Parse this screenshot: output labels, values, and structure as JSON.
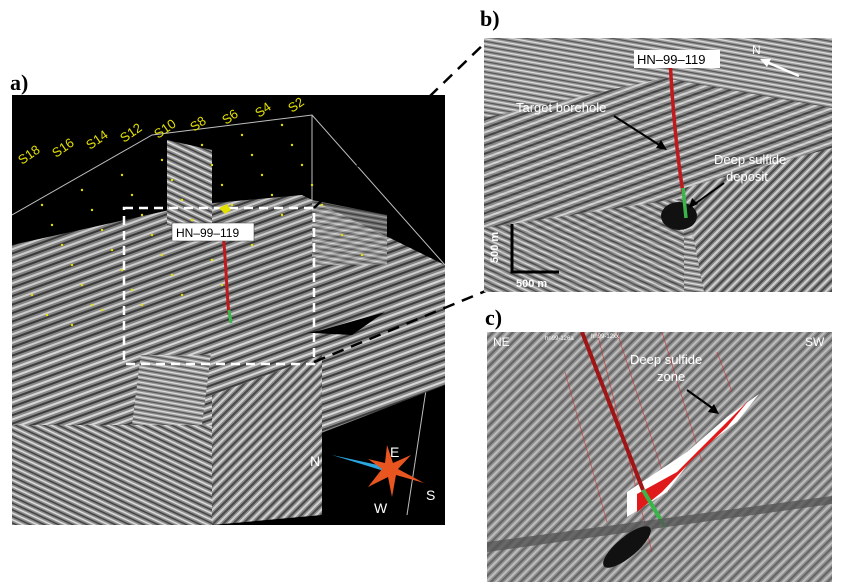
{
  "labels": {
    "a": "a)",
    "b": "b)",
    "c": "c)"
  },
  "panel_a": {
    "survey_lines": [
      "S2",
      "S4",
      "S6",
      "S8",
      "S10",
      "S12",
      "S14",
      "S16",
      "S18"
    ],
    "borehole_label": "HN–99–119",
    "compass": {
      "n": "N",
      "e": "E",
      "s": "S",
      "w": "W"
    }
  },
  "panel_b": {
    "borehole_label": "HN–99–119",
    "target_label": "Target borehole",
    "deposit_label_1": "Deep sulfide",
    "deposit_label_2": "deposit",
    "north": "N",
    "scale_vertical": "500 m",
    "scale_horizontal": "500 m"
  },
  "panel_c": {
    "left_direction": "NE",
    "right_direction": "SW",
    "zone_label_1": "Deep sulfide",
    "zone_label_2": "zone",
    "hole_label_1": "hn99-126a",
    "hole_label_2": "hn99-12xx"
  },
  "colors": {
    "background": "#000000",
    "survey_points": "#e3e000",
    "borehole": "#c0191e",
    "deposit": "#3ab54a",
    "compass_north": "#2aa7e0",
    "compass_star": "#e8551f",
    "sulfide_zone": "#e01a1a"
  }
}
